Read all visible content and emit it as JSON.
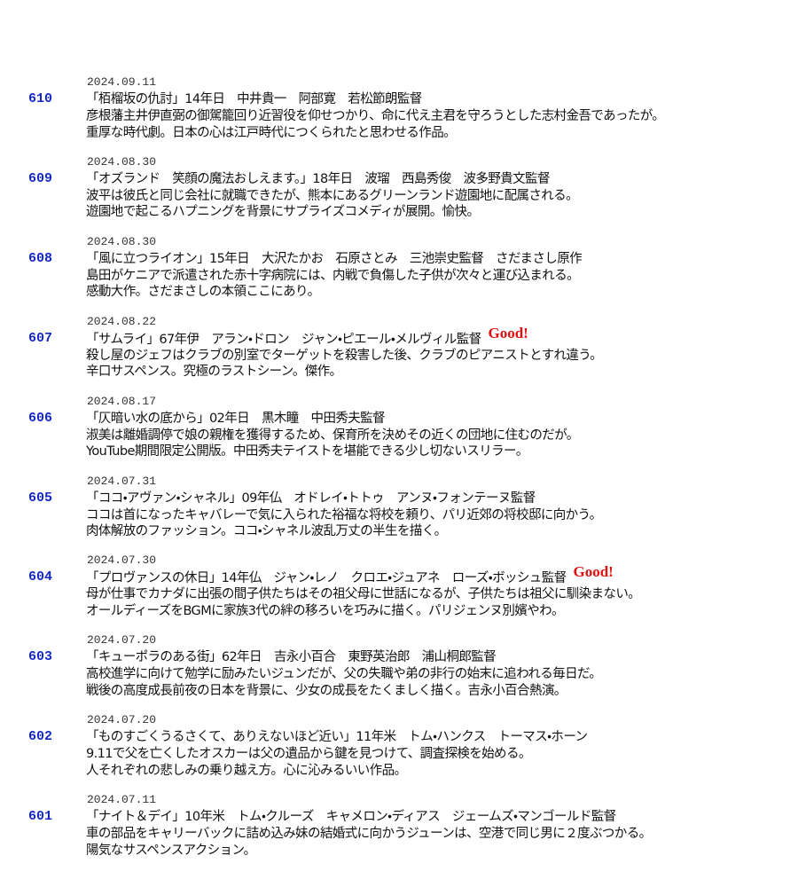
{
  "entries": [
    {
      "number": "610",
      "date": "2024.09.11",
      "title": "「栢榴坂の仇討」14年日　中井貴一　阿部寛　若松節朗監督",
      "lines": [
        "彦根藩主井伊直弼の御駕籠回り近習役を仰せつかり、命に代え主君を守ろうとした志村金吾であったが。",
        "重厚な時代劇。日本の心は江戸時代につくられたと思わせる作品。"
      ]
    },
    {
      "number": "609",
      "date": "2024.08.30",
      "title": "「オズランド　笑顔の魔法おしえます。」18年日　波瑠　西島秀俊　波多野貴文監督",
      "lines": [
        "波平は彼氏と同じ会社に就職できたが、熊本にあるグリーンランド遊園地に配属される。",
        "遊園地で起こるハプニングを背景にサプライズコメディが展開。愉快。"
      ]
    },
    {
      "number": "608",
      "date": "2024.08.30",
      "title": "「風に立つライオン」15年日　大沢たかお　石原さとみ　三池崇史監督　さだまさし原作",
      "lines": [
        "島田がケニアで派遣された赤十字病院には、内戦で負傷した子供が次々と運び込まれる。",
        "感動大作。さだまさしの本領ここにあり。"
      ]
    },
    {
      "number": "607",
      "date": "2024.08.22",
      "title": "「サムライ」67年伊　アラン・ドロン　ジャン・ピエール・メルヴィル監督",
      "badge": "Good!",
      "lines": [
        "殺し屋のジェフはクラブの別室でターゲットを殺害した後、クラブのピアニストとすれ違う。",
        "辛口サスペンス。究極のラストシーン。傑作。"
      ]
    },
    {
      "number": "606",
      "date": "2024.08.17",
      "title": "「仄暗い水の底から」02年日　黒木瞳　中田秀夫監督",
      "lines": [
        "淑美は離婚調停で娘の親権を獲得するため、保育所を決めその近くの団地に住むのだが。",
        "YouTube期間限定公開版。中田秀夫テイストを堪能できる少し切ないスリラー。"
      ]
    },
    {
      "number": "605",
      "date": "2024.07.31",
      "title": "「ココ・アヴァン・シャネル」09年仏　オドレイ・トトゥ　アンヌ・フォンテーヌ監督",
      "lines": [
        "ココは首になったキャバレーで気に入られた裕福な将校を頼り、パリ近郊の将校邸に向かう。",
        "肉体解放のファッション。ココ・シャネル波乱万丈の半生を描く。"
      ]
    },
    {
      "number": "604",
      "date": "2024.07.30",
      "title": "「プロヴァンスの休日」14年仏　ジャン・レノ　クロエ・ジュアネ　ローズ・ボッシュ監督",
      "badge": "Good!",
      "lines": [
        "母が仕事でカナダに出張の間子供たちはその祖父母に世話になるが、子供たちは祖父に馴染まない。",
        "オールディーズをBGMに家族3代の絆の移ろいを巧みに描く。パリジェンヌ別嬪やわ。"
      ]
    },
    {
      "number": "603",
      "date": "2024.07.20",
      "title": "「キューポラのある街」62年日　吉永小百合　東野英治郎　浦山桐郎監督",
      "lines": [
        "高校進学に向けて勉学に励みたいジュンだが、父の失職や弟の非行の始末に追われる毎日だ。",
        "戦後の高度成長前夜の日本を背景に、少女の成長をたくましく描く。吉永小百合熱演。"
      ]
    },
    {
      "number": "602",
      "date": "2024.07.20",
      "title": "「ものすごくうるさくて、ありえないほど近い」11年米　トム・ハンクス　トーマス・ホーン",
      "lines": [
        "9.11で父を亡くしたオスカーは父の遺品から鍵を見つけて、調査探検を始める。",
        "人それぞれの悲しみの乗り越え方。心に沁みるいい作品。"
      ]
    },
    {
      "number": "601",
      "date": "2024.07.11",
      "title": "「ナイト＆デイ」10年米　トム・クルーズ　キャメロン・ディアス　ジェームズ・マンゴールド監督",
      "lines": [
        "車の部品をキャリーバックに詰め込み妹の結婚式に向かうジューンは、空港で同じ男に２度ぶつかる。",
        "陽気なサスペンスアクション。"
      ]
    }
  ]
}
